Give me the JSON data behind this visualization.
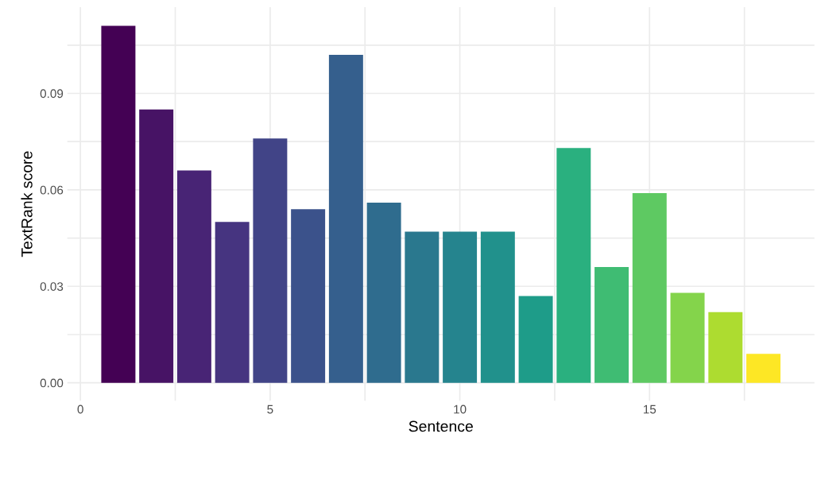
{
  "chart_data": {
    "type": "bar",
    "xlabel": "Sentence",
    "ylabel": "TextRank score",
    "x": [
      1,
      2,
      3,
      4,
      5,
      6,
      7,
      8,
      9,
      10,
      11,
      12,
      13,
      14,
      15,
      16,
      17,
      18
    ],
    "values": [
      0.111,
      0.085,
      0.066,
      0.05,
      0.076,
      0.054,
      0.102,
      0.056,
      0.047,
      0.047,
      0.047,
      0.027,
      0.073,
      0.036,
      0.059,
      0.028,
      0.022,
      0.009
    ],
    "colors": [
      "#440154",
      "#471365",
      "#482475",
      "#463480",
      "#414487",
      "#3b528b",
      "#355f8d",
      "#2f6c8e",
      "#2a788e",
      "#25848e",
      "#21918c",
      "#1e9c89",
      "#2ab07f",
      "#3fbc73",
      "#5ec962",
      "#84d44b",
      "#addc30",
      "#fde725"
    ],
    "xlim": [
      -0.345,
      19.345
    ],
    "xticks": [
      0,
      {
        "value": 2.5,
        "label": null
      },
      5,
      {
        "value": 7.5,
        "label": null
      },
      10,
      {
        "value": 12.5,
        "label": null
      },
      15,
      {
        "value": 17.5,
        "label": null
      }
    ],
    "ylim": [
      -0.0056,
      0.1168
    ],
    "yticks": [
      {
        "value": 0,
        "label": "0.00"
      },
      {
        "value": 0.015,
        "label": null
      },
      {
        "value": 0.03,
        "label": "0.03"
      },
      {
        "value": 0.045,
        "label": null
      },
      {
        "value": 0.06,
        "label": "0.06"
      },
      {
        "value": 0.075,
        "label": null
      },
      {
        "value": 0.09,
        "label": "0.09"
      },
      {
        "value": 0.105,
        "label": null
      }
    ],
    "grid": true
  }
}
